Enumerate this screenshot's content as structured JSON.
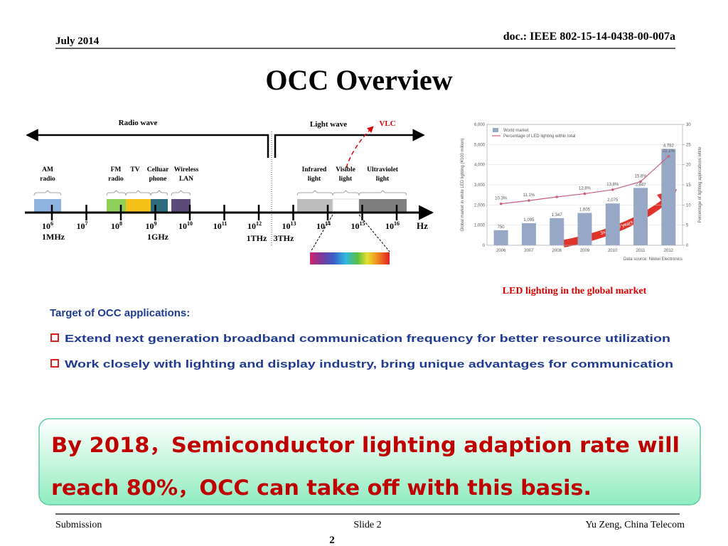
{
  "header": {
    "date": "July 2014",
    "doc": "doc.: IEEE 802-15-14-0438-00-007a"
  },
  "title": "OCC Overview",
  "spectrum": {
    "radio_wave": "Radio wave",
    "light_wave": "Light wave",
    "vlc": "VLC",
    "bands": [
      {
        "lines": [
          "AM",
          "radio"
        ]
      },
      {
        "lines": [
          "FM",
          "radio"
        ]
      },
      {
        "lines": [
          "TV"
        ]
      },
      {
        "lines": [
          "Celluar",
          "phone"
        ]
      },
      {
        "lines": [
          "Wireless",
          "LAN"
        ]
      },
      {
        "lines": [
          "Infrared",
          "light"
        ]
      },
      {
        "lines": [
          "Visible",
          "light"
        ]
      },
      {
        "lines": [
          "Ultraviolet",
          "light"
        ]
      }
    ],
    "tick_base": "10",
    "tick_exponents": [
      "6",
      "7",
      "8",
      "9",
      "10",
      "11",
      "12",
      "13",
      "14",
      "15",
      "16"
    ],
    "unit": "Hz",
    "markers": [
      "1MHz",
      "1GHz",
      "1THz",
      "3THz"
    ]
  },
  "chart_data": {
    "type": "bar",
    "categories": [
      "2006",
      "2007",
      "2008",
      "2009",
      "2010",
      "2011",
      "2012"
    ],
    "series": [
      {
        "name": "World market",
        "color": "#97a7c6",
        "values": [
          750,
          1095,
          1347,
          1605,
          2075,
          2847,
          4782
        ],
        "value_labels": [
          "750",
          "1,095",
          "1,347",
          "1,605",
          "2,075",
          "2,847",
          "4,782"
        ]
      },
      {
        "name": "Percentage of LED lighting within total",
        "color": "#c8617c",
        "type": "line",
        "axis": "y2",
        "values": [
          10.3,
          11.1,
          12.0,
          12.8,
          13.8,
          15.8,
          22.1
        ],
        "value_labels": [
          "10.3%",
          "11.1%",
          null,
          "12.8%",
          "13.8%",
          "15.8%",
          "22.1%"
        ]
      }
    ],
    "ylim": [
      0,
      6000
    ],
    "yticks": [
      0,
      {
        "value": 1000,
        "label": "1,000"
      },
      {
        "value": 2000,
        "label": "2,000"
      },
      {
        "value": 3000,
        "label": "3,000"
      },
      {
        "value": 4000,
        "label": "4,000"
      },
      {
        "value": 5000,
        "label": "5,000"
      },
      {
        "value": 6000,
        "label": "6,000"
      }
    ],
    "y2lim": [
      0,
      30
    ],
    "y2ticks": [
      0,
      5,
      10,
      15,
      20,
      25,
      30
    ],
    "y_label": "Global market in white LED lighting (¥100 million)",
    "y2_label": "Percentage of lighting applications white",
    "annotation": "3x in three years",
    "source": "Data source: Nikkei Electronics"
  },
  "caption": "LED lighting in the global market",
  "body": {
    "heading": "Target of OCC applications:",
    "bullets": [
      "Extend next generation broadband communication frequency for better resource utilization",
      "Work closely with lighting and display industry, bring unique advantages for communication"
    ]
  },
  "callout": {
    "lines": [
      "By 2018，Semiconductor lighting adaption rate will",
      "reach 80%，OCC can take off with this basis."
    ]
  },
  "footer": {
    "left": "Submission",
    "center": "Slide 2",
    "right": "Yu Zeng, China Telecom",
    "page": "2"
  }
}
